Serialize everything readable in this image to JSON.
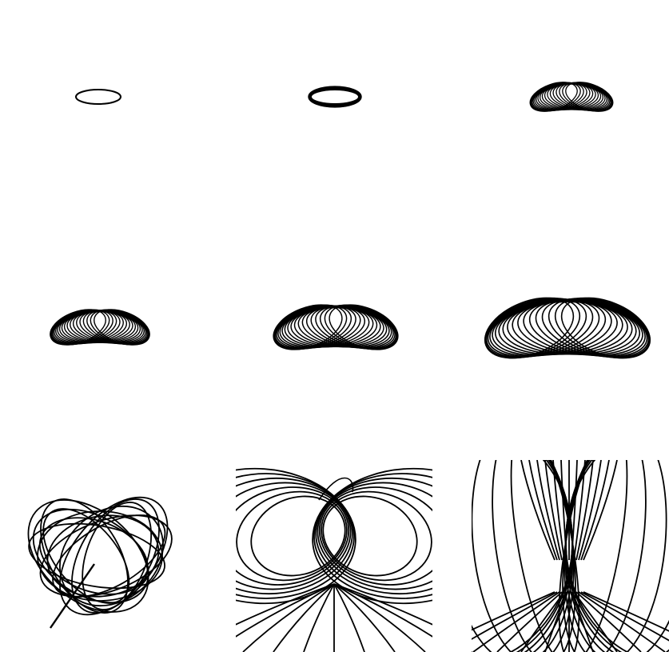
{
  "figure": {
    "stroke_color": "#000000",
    "background_color": "#ffffff",
    "panels": [
      {
        "id": "p1",
        "shape": "ellipse-ring"
      },
      {
        "id": "p2",
        "shape": "thick-torus"
      },
      {
        "id": "p3",
        "shape": "coiled-torus"
      },
      {
        "id": "p4",
        "shape": "coiled-torus"
      },
      {
        "id": "p5",
        "shape": "coiled-torus"
      },
      {
        "id": "p6",
        "shape": "coiled-torus"
      },
      {
        "id": "p7",
        "shape": "expanding-field-loops"
      },
      {
        "id": "p8",
        "shape": "field-loops"
      },
      {
        "id": "p9",
        "shape": "vertical-field-loops"
      }
    ]
  }
}
